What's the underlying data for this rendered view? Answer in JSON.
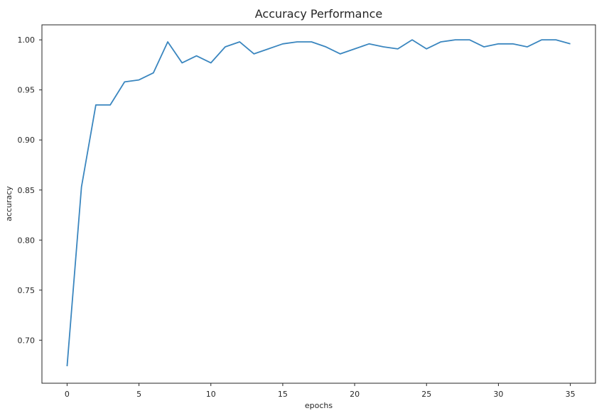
{
  "chart_data": {
    "type": "line",
    "title": "Accuracy Performance",
    "xlabel": "epochs",
    "ylabel": "accuracy",
    "xlim": [
      -1.75,
      36.75
    ],
    "ylim": [
      0.657,
      1.015
    ],
    "xticks": [
      0,
      5,
      10,
      15,
      20,
      25,
      30,
      35
    ],
    "yticks": [
      0.7,
      0.75,
      0.8,
      0.85,
      0.9,
      0.95,
      1.0
    ],
    "ytick_labels": [
      "0.70",
      "0.75",
      "0.80",
      "0.85",
      "0.90",
      "0.95",
      "1.00"
    ],
    "grid": false,
    "color": "#3a86bf",
    "series": [
      {
        "x": [
          0,
          1,
          2,
          3,
          4,
          5,
          6,
          7,
          8,
          9,
          10,
          11,
          12,
          13,
          14,
          15,
          16,
          17,
          18,
          19,
          20,
          21,
          22,
          23,
          24,
          25,
          26,
          27,
          28,
          29,
          30,
          31,
          32,
          33,
          34,
          35
        ],
        "values": [
          0.674,
          0.853,
          0.935,
          0.935,
          0.958,
          0.96,
          0.967,
          0.998,
          0.977,
          0.984,
          0.977,
          0.993,
          0.998,
          0.986,
          0.991,
          0.996,
          0.998,
          0.998,
          0.993,
          0.986,
          0.991,
          0.996,
          0.993,
          0.991,
          1.0,
          0.991,
          0.998,
          1.0,
          1.0,
          0.993,
          0.996,
          0.996,
          0.993,
          1.0,
          1.0,
          0.996
        ]
      }
    ]
  }
}
